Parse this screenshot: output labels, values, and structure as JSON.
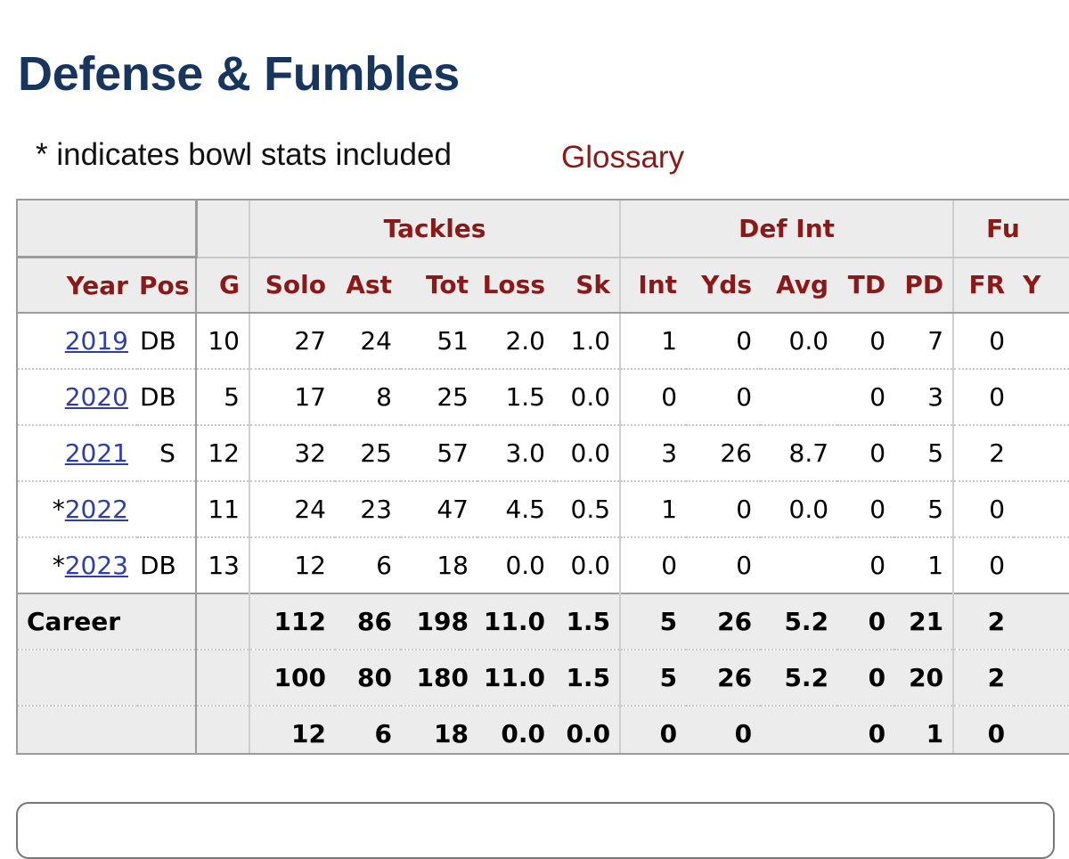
{
  "page": {
    "title": "Defense & Fumbles",
    "note": "* indicates bowl stats included",
    "glossary_label": "Glossary"
  },
  "table": {
    "groups": {
      "tackles": "Tackles",
      "def_int": "Def Int",
      "fumbles": "Fu"
    },
    "columns": [
      "Year",
      "Pos",
      "G",
      "Solo",
      "Ast",
      "Tot",
      "Loss",
      "Sk",
      "Int",
      "Yds",
      "Avg",
      "TD",
      "PD",
      "FR",
      "Y"
    ],
    "rows": [
      {
        "prefix": "",
        "year": "2019",
        "pos": "DB",
        "g": "10",
        "solo": "27",
        "ast": "24",
        "tot": "51",
        "loss": "2.0",
        "sk": "1.0",
        "int": "1",
        "yds": "0",
        "avg": "0.0",
        "td": "0",
        "pd": "7",
        "fr": "0",
        "y": ""
      },
      {
        "prefix": "",
        "year": "2020",
        "pos": "DB",
        "g": "5",
        "solo": "17",
        "ast": "8",
        "tot": "25",
        "loss": "1.5",
        "sk": "0.0",
        "int": "0",
        "yds": "0",
        "avg": "",
        "td": "0",
        "pd": "3",
        "fr": "0",
        "y": ""
      },
      {
        "prefix": "",
        "year": "2021",
        "pos": "S",
        "g": "12",
        "solo": "32",
        "ast": "25",
        "tot": "57",
        "loss": "3.0",
        "sk": "0.0",
        "int": "3",
        "yds": "26",
        "avg": "8.7",
        "td": "0",
        "pd": "5",
        "fr": "2",
        "y": ""
      },
      {
        "prefix": "*",
        "year": "2022",
        "pos": "",
        "g": "11",
        "solo": "24",
        "ast": "23",
        "tot": "47",
        "loss": "4.5",
        "sk": "0.5",
        "int": "1",
        "yds": "0",
        "avg": "0.0",
        "td": "0",
        "pd": "5",
        "fr": "0",
        "y": ""
      },
      {
        "prefix": "*",
        "year": "2023",
        "pos": "DB",
        "g": "13",
        "solo": "12",
        "ast": "6",
        "tot": "18",
        "loss": "0.0",
        "sk": "0.0",
        "int": "0",
        "yds": "0",
        "avg": "",
        "td": "0",
        "pd": "1",
        "fr": "0",
        "y": ""
      }
    ],
    "footer": [
      {
        "label": "Career",
        "solo": "112",
        "ast": "86",
        "tot": "198",
        "loss": "11.0",
        "sk": "1.5",
        "int": "5",
        "yds": "26",
        "avg": "5.2",
        "td": "0",
        "pd": "21",
        "fr": "2"
      },
      {
        "label": "",
        "solo": "100",
        "ast": "80",
        "tot": "180",
        "loss": "11.0",
        "sk": "1.5",
        "int": "5",
        "yds": "26",
        "avg": "5.2",
        "td": "0",
        "pd": "20",
        "fr": "2"
      },
      {
        "label": "",
        "solo": "12",
        "ast": "6",
        "tot": "18",
        "loss": "0.0",
        "sk": "0.0",
        "int": "0",
        "yds": "0",
        "avg": "",
        "td": "0",
        "pd": "1",
        "fr": "0"
      }
    ]
  },
  "colors": {
    "title": "#18355e",
    "header_text": "#8a1a1a",
    "link": "#2f3fa8",
    "header_bg": "#ececec"
  }
}
